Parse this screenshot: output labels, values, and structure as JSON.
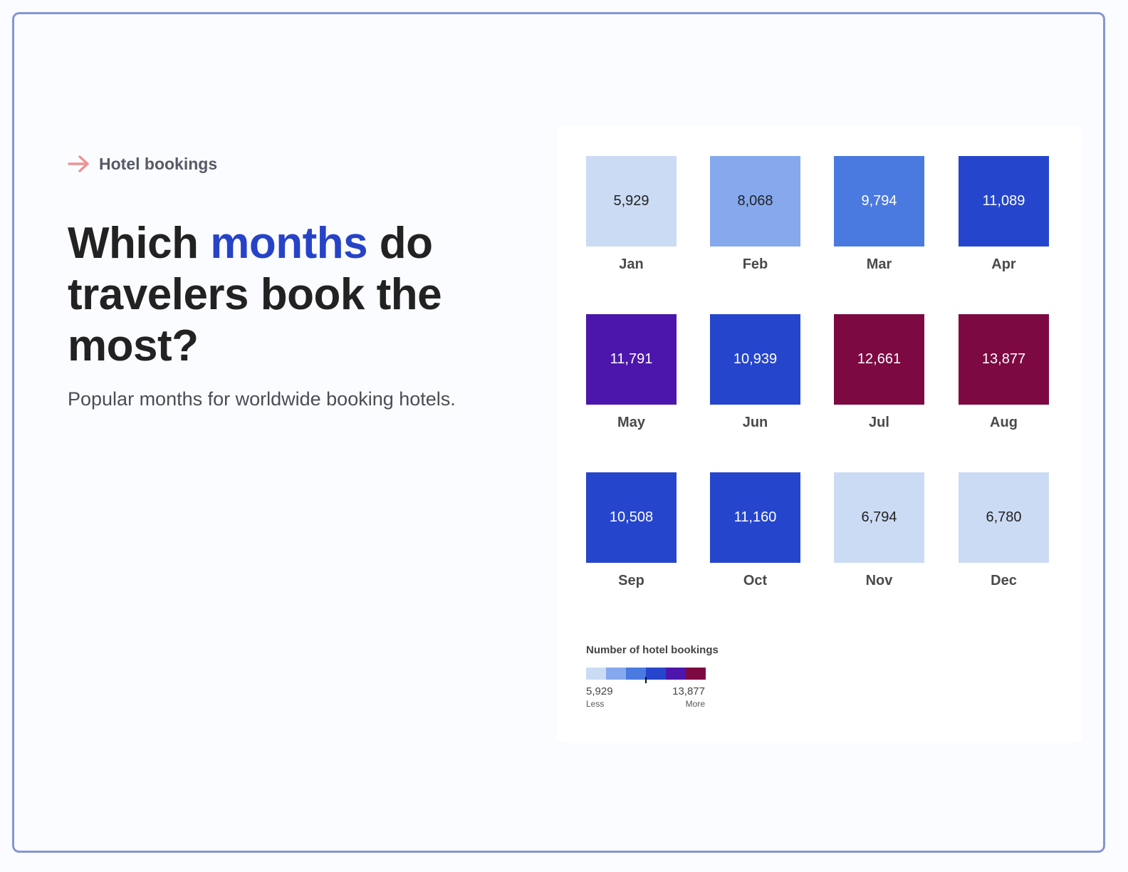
{
  "header": {
    "kicker": "Hotel bookings",
    "title_part1": "Which ",
    "title_accent": "months",
    "title_part2": " do travelers book the most?",
    "subtitle": "Popular months for worldwide booking hotels."
  },
  "colors": {
    "accent": "#2643c8",
    "kicker_arrow": "#ee9296",
    "scale": [
      "#cbdbf4",
      "#86a9ee",
      "#4a7ae0",
      "#2546cc",
      "#4c16ac",
      "#7d0942"
    ]
  },
  "chart_data": {
    "type": "heatmap",
    "categories": [
      "Jan",
      "Feb",
      "Mar",
      "Apr",
      "May",
      "Jun",
      "Jul",
      "Aug",
      "Sep",
      "Oct",
      "Nov",
      "Dec"
    ],
    "values": [
      5929,
      8068,
      9794,
      11089,
      11791,
      10939,
      12661,
      13877,
      10508,
      11160,
      6794,
      6780
    ],
    "value_labels": [
      "5,929",
      "8,068",
      "9,794",
      "11,089",
      "11,791",
      "10,939",
      "12,661",
      "13,877",
      "10,508",
      "11,160",
      "6,794",
      "6,780"
    ],
    "legend": {
      "title": "Number of hotel bookings",
      "min_label": "5,929",
      "max_label": "13,877",
      "less_label": "Less",
      "more_label": "More",
      "min": 5929,
      "max": 13877,
      "marker_value": 9903
    }
  }
}
